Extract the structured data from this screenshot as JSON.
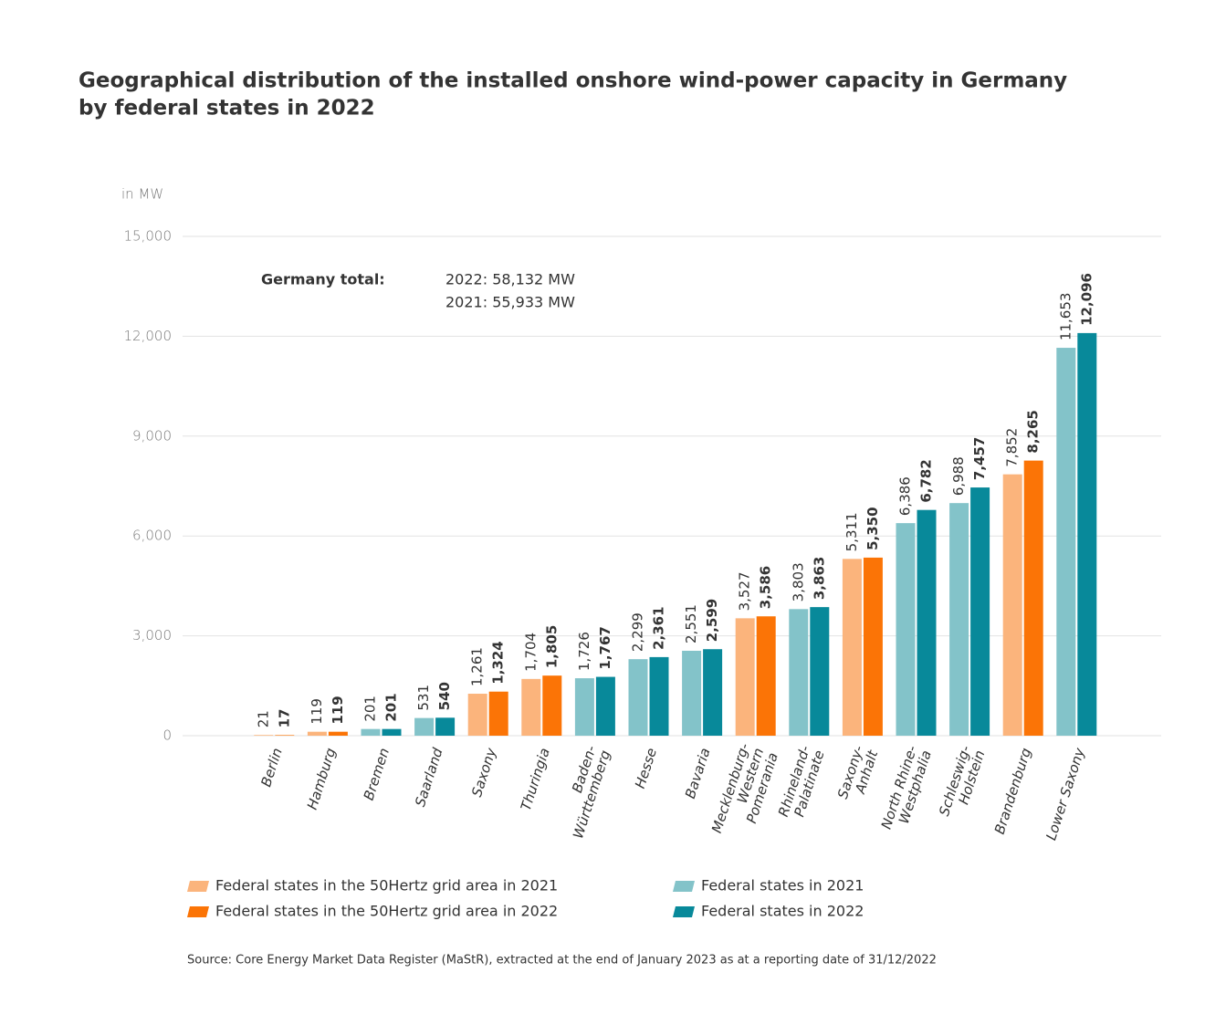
{
  "chart_data": {
    "type": "bar",
    "title": [
      "Geographical distribution of the installed onshore wind-power capacity in Germany",
      "by federal states in 2022"
    ],
    "y_label": "in MW",
    "annotation": {
      "label": "Germany total:",
      "lines": [
        "2022: 58,132 MW",
        "2021: 55,933 MW"
      ]
    },
    "source": "Source: Core Energy Market Data Register (MaStR), extracted at the end of January 2023 as at a reporting date of 31/12/2022",
    "categories": [
      "Berlin",
      "Hamburg",
      "Bremen",
      "Saarland",
      "Saxony",
      "Thuringia",
      "Baden-\nWürttemberg",
      "Hesse",
      "Bavaria",
      "Mecklenburg-\nWestern\nPomerania",
      "Rhineland-\nPalatinate",
      "Saxony-\nAnhalt",
      "North Rhine-\nWestphalia",
      "Schleswig-\nHolstein",
      "Brandenburg",
      "Lower Saxony"
    ],
    "series": [
      {
        "name": "Federal states in the 50Hertz grid area in 2021",
        "color": "#fbb47c",
        "values": [
          21,
          119,
          null,
          null,
          1261,
          1704,
          null,
          null,
          null,
          3527,
          null,
          5311,
          null,
          null,
          7852,
          null
        ],
        "value_labels": [
          "21",
          "119",
          null,
          null,
          "1,261",
          "1,704",
          null,
          null,
          null,
          "3,527",
          null,
          "5,311",
          null,
          null,
          "7,852",
          null
        ]
      },
      {
        "name": "Federal states in the 50Hertz grid area in 2022",
        "color": "#fb7406",
        "values": [
          17,
          119,
          null,
          null,
          1324,
          1805,
          null,
          null,
          null,
          3586,
          null,
          5350,
          null,
          null,
          8265,
          null
        ],
        "value_labels": [
          "17",
          "119",
          null,
          null,
          "1,324",
          "1,805",
          null,
          null,
          null,
          "3,586",
          null,
          "5,350",
          null,
          null,
          "8,265",
          null
        ]
      },
      {
        "name": "Federal states in 2021",
        "color": "#83c3c9",
        "values": [
          null,
          null,
          201,
          531,
          null,
          null,
          1726,
          2299,
          2551,
          null,
          3803,
          null,
          6386,
          6988,
          null,
          11653
        ],
        "value_labels": [
          null,
          null,
          "201",
          "531",
          null,
          null,
          "1,726",
          "2,299",
          "2,551",
          null,
          "3,803",
          null,
          "6,386",
          "6,988",
          null,
          "11,653"
        ]
      },
      {
        "name": "Federal states in 2022",
        "color": "#08899a",
        "values": [
          null,
          null,
          201,
          540,
          null,
          null,
          1767,
          2361,
          2599,
          null,
          3863,
          null,
          6782,
          7457,
          null,
          12096
        ],
        "value_labels": [
          null,
          null,
          "201",
          "540",
          null,
          null,
          "1,767",
          "2,361",
          "2,599",
          null,
          "3,863",
          null,
          "6,782",
          "7,457",
          null,
          "12,096"
        ]
      }
    ],
    "ylim": [
      0,
      15000
    ],
    "yticks": [
      0,
      {
        "value": 3000,
        "label": "3,000"
      },
      {
        "value": 6000,
        "label": "6,000"
      },
      {
        "value": 9000,
        "label": "9,000"
      },
      {
        "value": 12000,
        "label": "12,000"
      },
      {
        "value": 15000,
        "label": "15,000"
      }
    ],
    "grid": true
  }
}
